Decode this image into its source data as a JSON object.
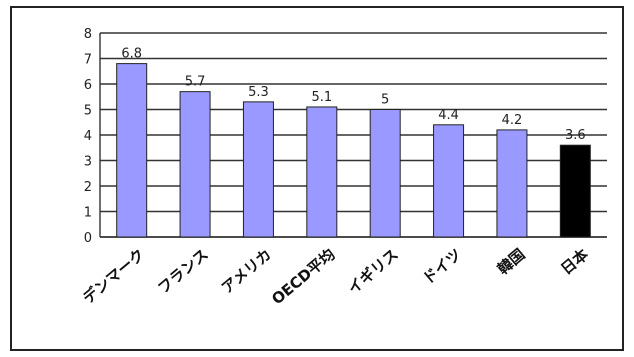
{
  "chart_data": {
    "type": "bar",
    "categories": [
      "デンマーク",
      "フランス",
      "アメリカ",
      "OECD平均",
      "イギリス",
      "ドイツ",
      "韓国",
      "日本"
    ],
    "values": [
      6.8,
      5.7,
      5.3,
      5.1,
      5,
      4.4,
      4.2,
      3.6
    ],
    "value_labels": [
      "6.8",
      "5.7",
      "5.3",
      "5.1",
      "5",
      "4.4",
      "4.2",
      "3.6"
    ],
    "bar_colors": [
      "#9999ff",
      "#9999ff",
      "#9999ff",
      "#9999ff",
      "#9999ff",
      "#9999ff",
      "#9999ff",
      "#000000"
    ],
    "bar_edge_color": "#222222",
    "ylim": [
      0,
      8
    ],
    "yticks": [
      "0",
      "1",
      "2",
      "3",
      "4",
      "5",
      "6",
      "7",
      "8"
    ],
    "grid": true,
    "title": "",
    "xlabel": "",
    "ylabel": "",
    "legend": "none"
  }
}
